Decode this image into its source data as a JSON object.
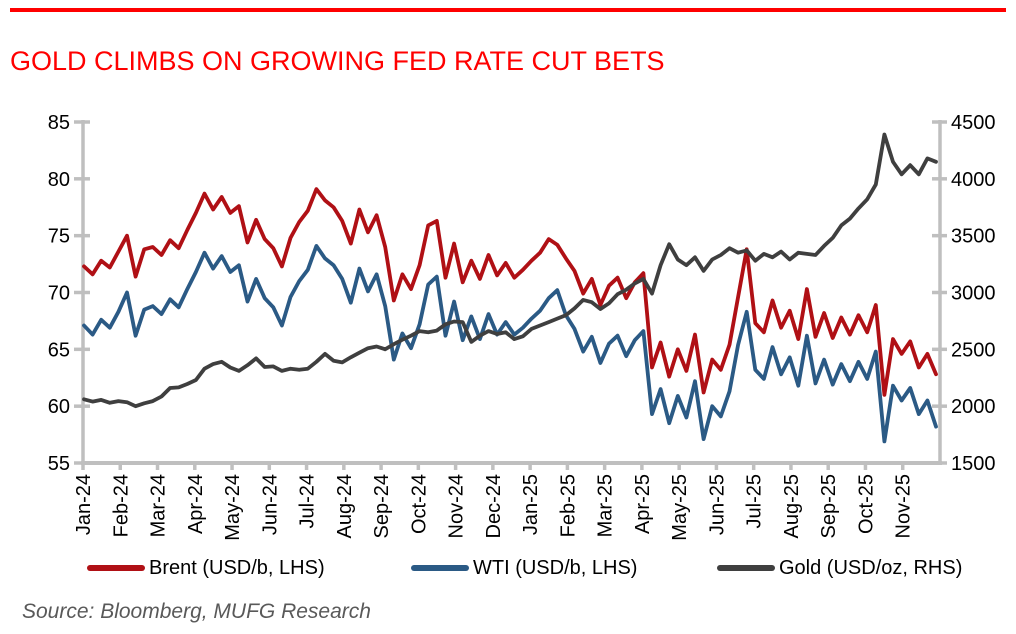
{
  "page": {
    "title": "GOLD CLIMBS ON GROWING FED RATE CUT BETS",
    "title_color": "#FF0000",
    "rule_color": "#FF0000",
    "source": "Source: Bloomberg, MUFG Research"
  },
  "chart_data": {
    "type": "line",
    "title": "GOLD CLIMBS ON GROWING FED RATE CUT BETS",
    "x_tick_labels": [
      "Jan-24",
      "Feb-24",
      "Mar-24",
      "Apr-24",
      "May-24",
      "Jun-24",
      "Jul-24",
      "Aug-24",
      "Sep-24",
      "Oct-24",
      "Nov-24",
      "Dec-24",
      "Jan-25",
      "Feb-25",
      "Mar-25",
      "Apr-25",
      "May-25",
      "Jun-25",
      "Jul-25",
      "Aug-25",
      "Sep-25",
      "Oct-25",
      "Nov-25"
    ],
    "x_range_months": [
      "Jan-24",
      "Nov-25"
    ],
    "points_evenly_spaced": true,
    "grid": "off",
    "legend_position": "bottom",
    "axis_color": "#BFBFBF",
    "left_axis": {
      "label": "USD/b",
      "min": 55,
      "max": 85,
      "ticks": [
        85,
        80,
        75,
        70,
        65,
        60,
        55
      ]
    },
    "right_axis": {
      "label": "USD/oz",
      "min": 1500,
      "max": 4500,
      "ticks": [
        4500,
        4000,
        3500,
        3000,
        2500,
        2000,
        1500
      ]
    },
    "series": [
      {
        "id": "brent",
        "name": "Brent (USD/b, LHS)",
        "axis": "left",
        "color": "#B01015",
        "values": [
          72.3,
          71.6,
          72.8,
          72.2,
          73.6,
          75.0,
          71.4,
          73.8,
          74.0,
          73.3,
          74.6,
          73.9,
          75.5,
          77.0,
          78.7,
          77.3,
          78.4,
          77.0,
          77.6,
          74.4,
          76.4,
          74.7,
          73.9,
          72.3,
          74.8,
          76.2,
          77.2,
          79.1,
          78.1,
          77.5,
          76.3,
          74.3,
          77.3,
          75.3,
          76.8,
          74.0,
          69.3,
          71.6,
          70.3,
          72.4,
          75.9,
          76.3,
          71.3,
          74.3,
          70.9,
          72.8,
          71.2,
          73.3,
          71.5,
          72.6,
          71.3,
          72.0,
          72.8,
          73.5,
          74.7,
          74.2,
          73.0,
          71.9,
          69.9,
          71.2,
          68.9,
          70.6,
          71.3,
          69.5,
          70.9,
          71.7,
          63.4,
          65.6,
          62.6,
          65.0,
          63.1,
          66.3,
          61.2,
          64.1,
          63.2,
          65.4,
          69.6,
          73.8,
          67.3,
          66.5,
          69.3,
          66.9,
          68.4,
          65.9,
          70.3,
          66.1,
          68.2,
          66.0,
          67.8,
          66.3,
          68.0,
          66.5,
          68.9,
          61.0,
          65.9,
          64.6,
          65.7,
          63.4,
          64.6,
          62.8
        ]
      },
      {
        "id": "wti",
        "name": "WTI (USD/b, LHS)",
        "axis": "left",
        "color": "#2B5A85",
        "values": [
          67.1,
          66.3,
          67.6,
          66.9,
          68.3,
          70.0,
          66.2,
          68.5,
          68.8,
          68.1,
          69.4,
          68.7,
          70.3,
          71.8,
          73.5,
          72.1,
          73.2,
          71.8,
          72.4,
          69.2,
          71.2,
          69.5,
          68.7,
          67.1,
          69.6,
          71.0,
          72.0,
          74.1,
          73.0,
          72.4,
          71.2,
          69.1,
          72.1,
          70.1,
          71.6,
          68.8,
          64.1,
          66.4,
          65.1,
          67.2,
          70.7,
          71.4,
          66.2,
          69.2,
          65.8,
          67.9,
          65.9,
          68.1,
          66.3,
          67.4,
          66.3,
          66.9,
          67.7,
          68.4,
          69.5,
          70.2,
          68.0,
          66.8,
          64.8,
          66.1,
          63.8,
          65.5,
          66.2,
          64.4,
          65.8,
          66.6,
          59.3,
          61.5,
          58.5,
          60.9,
          59.0,
          62.2,
          57.1,
          60.0,
          59.1,
          61.3,
          65.4,
          68.3,
          63.2,
          62.4,
          65.2,
          62.8,
          64.3,
          61.8,
          66.2,
          62.0,
          64.1,
          61.9,
          63.7,
          62.2,
          63.9,
          62.4,
          64.8,
          56.9,
          61.8,
          60.5,
          61.6,
          59.3,
          60.5,
          58.2
        ]
      },
      {
        "id": "gold",
        "name": "Gold (USD/oz, RHS)",
        "axis": "right",
        "color": "#3F3F3F",
        "values": [
          2060,
          2040,
          2055,
          2030,
          2045,
          2035,
          2000,
          2025,
          2045,
          2085,
          2160,
          2165,
          2195,
          2230,
          2330,
          2370,
          2390,
          2340,
          2310,
          2360,
          2420,
          2345,
          2350,
          2310,
          2330,
          2320,
          2330,
          2390,
          2460,
          2400,
          2385,
          2430,
          2470,
          2510,
          2525,
          2500,
          2545,
          2585,
          2620,
          2660,
          2650,
          2665,
          2720,
          2745,
          2740,
          2565,
          2620,
          2660,
          2635,
          2650,
          2590,
          2615,
          2680,
          2710,
          2740,
          2770,
          2800,
          2860,
          2935,
          2915,
          2855,
          2905,
          2985,
          3025,
          3080,
          3120,
          2990,
          3240,
          3425,
          3290,
          3240,
          3310,
          3190,
          3290,
          3330,
          3390,
          3350,
          3370,
          3280,
          3340,
          3310,
          3360,
          3290,
          3350,
          3340,
          3330,
          3410,
          3480,
          3590,
          3650,
          3740,
          3820,
          3950,
          4390,
          4150,
          4040,
          4120,
          4040,
          4180,
          4150
        ]
      }
    ]
  }
}
